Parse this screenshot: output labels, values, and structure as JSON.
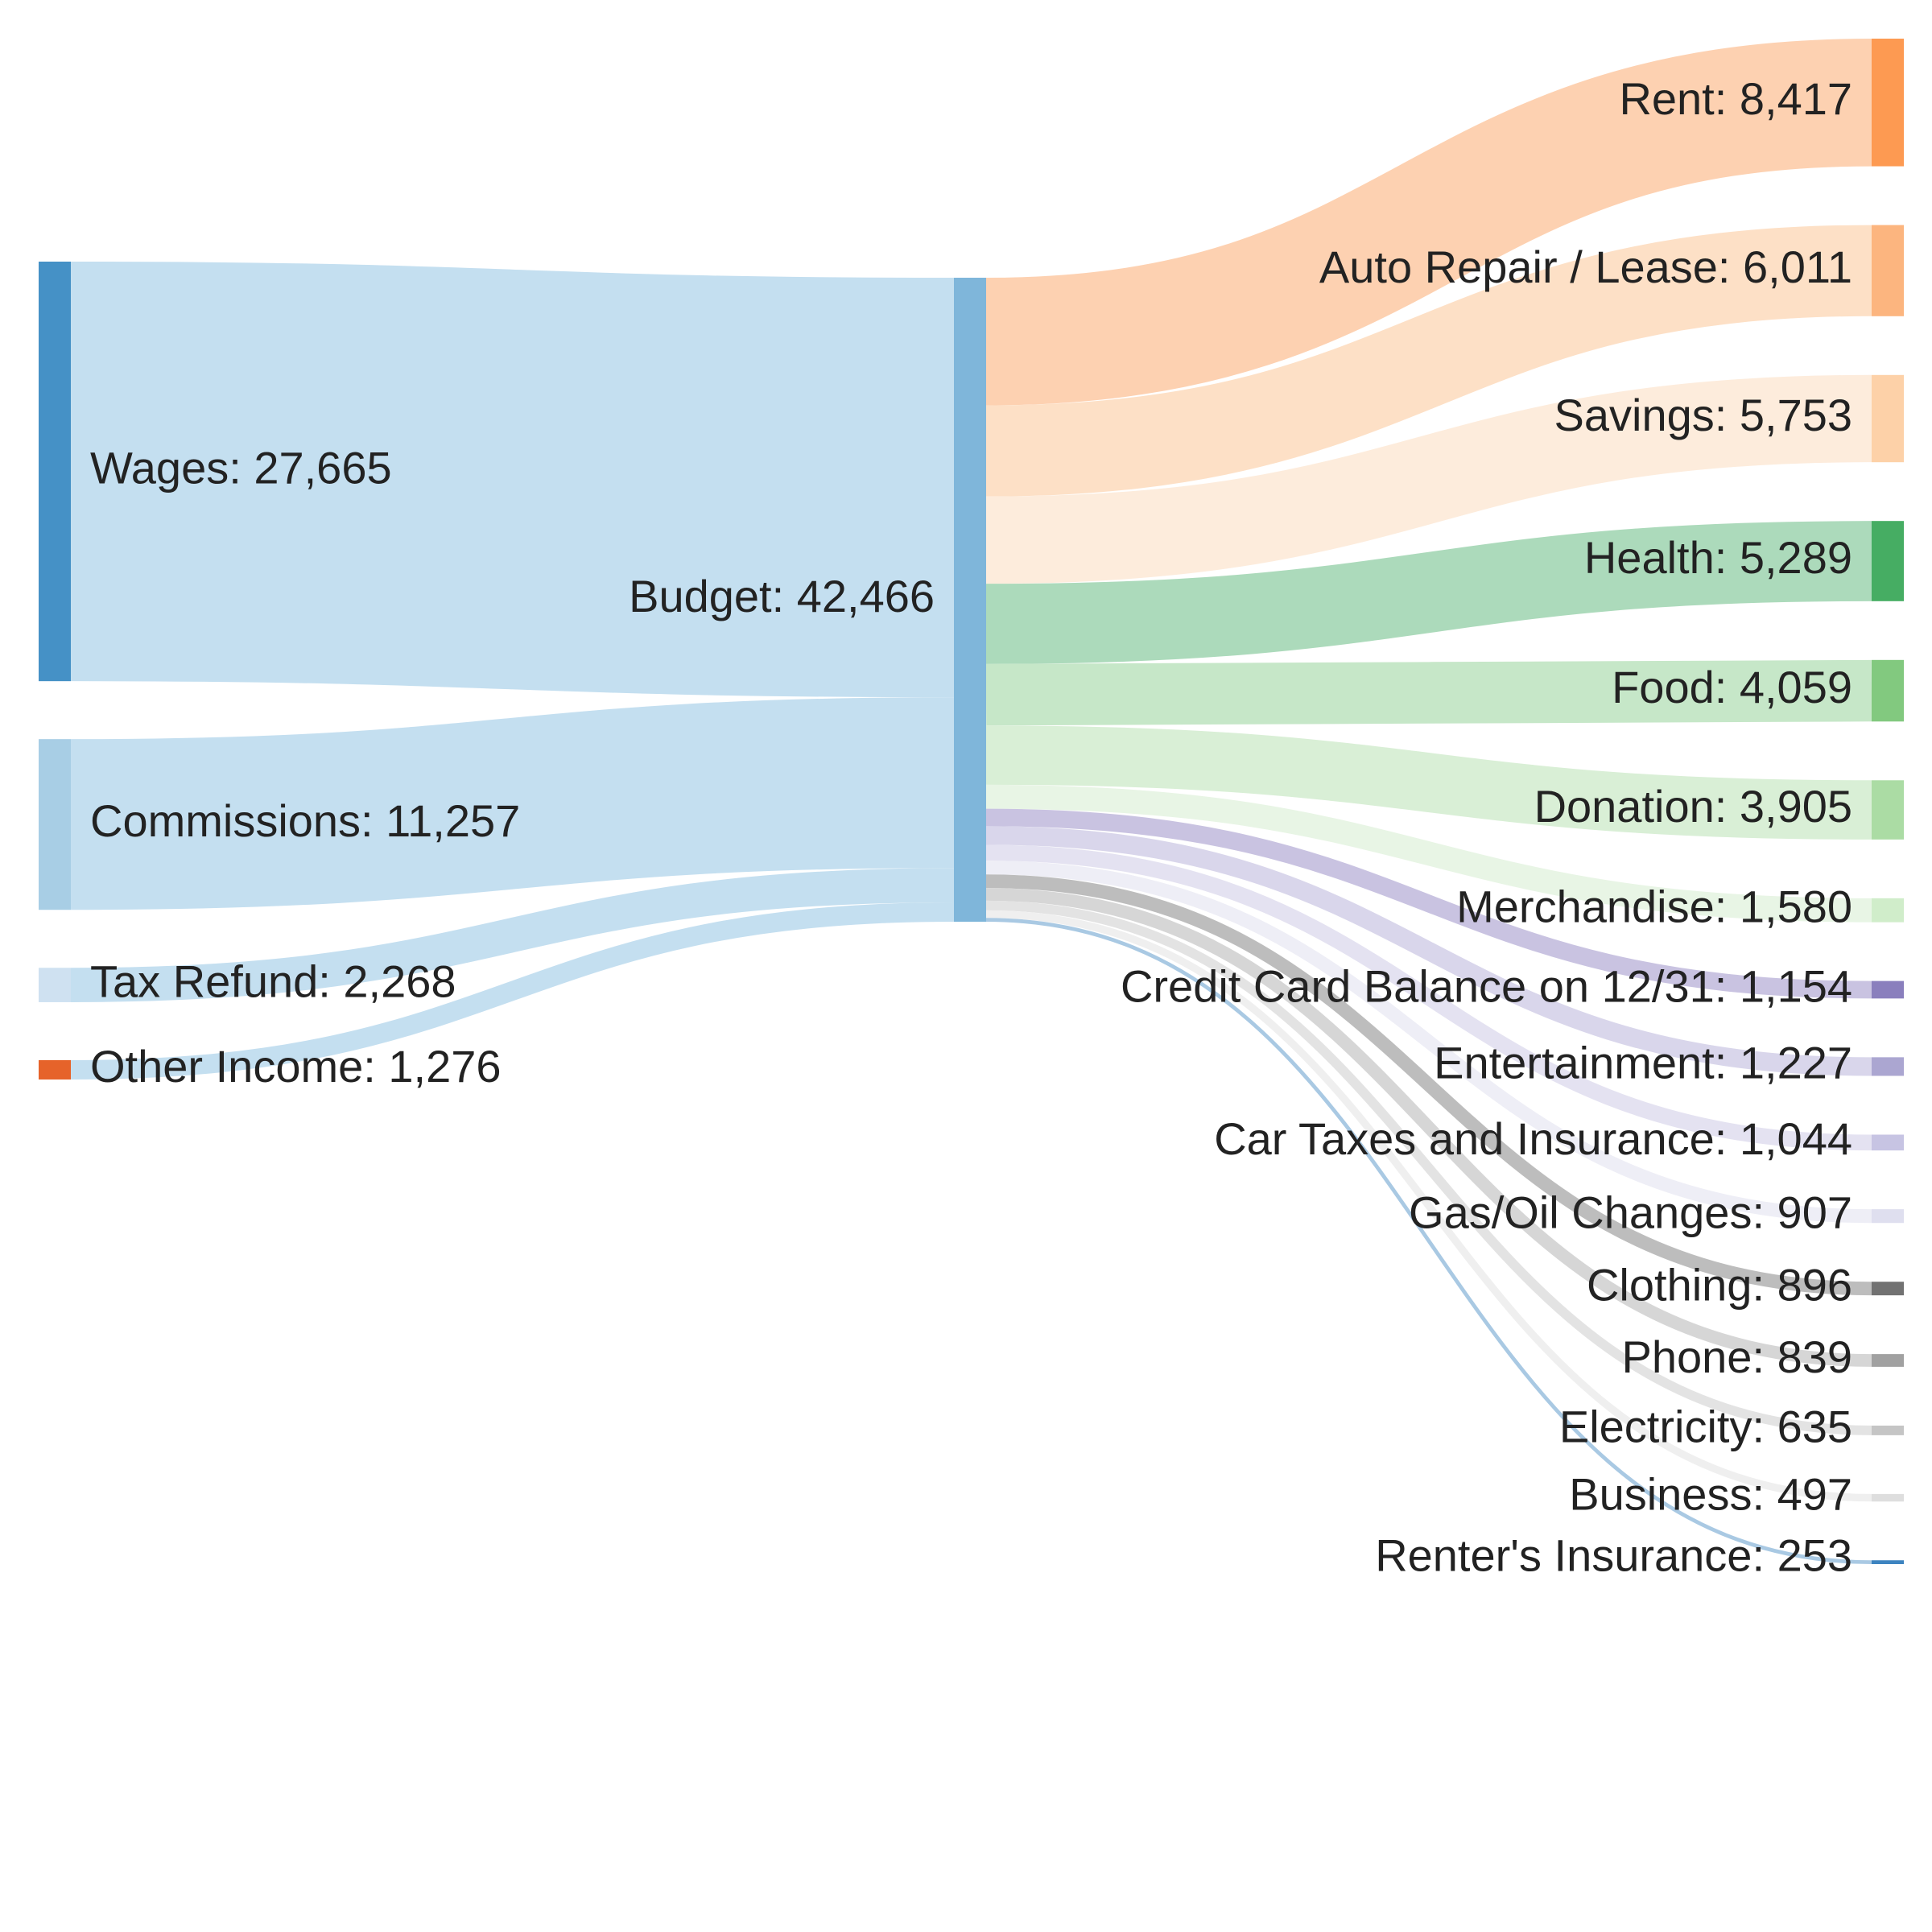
{
  "chart_data": {
    "type": "sankey",
    "nodes": [
      {
        "id": "wages",
        "name": "Wages",
        "value": 27665,
        "label": "Wages: 27,665",
        "column": 0,
        "color": "#4591c6",
        "link_color": "#c4dff0"
      },
      {
        "id": "commissions",
        "name": "Commissions",
        "value": 11257,
        "label": "Commissions: 11,257",
        "column": 0,
        "color": "#a8cee5",
        "link_color": "#c4dff0"
      },
      {
        "id": "tax_refund",
        "name": "Tax Refund",
        "value": 2268,
        "label": "Tax Refund: 2,268",
        "column": 0,
        "color": "#cfe1f1",
        "link_color": "#c4dff0"
      },
      {
        "id": "other_income",
        "name": "Other Income",
        "value": 1276,
        "label": "Other Income: 1,276",
        "column": 0,
        "color": "#e6632a",
        "link_color": "#c4dff0"
      },
      {
        "id": "budget",
        "name": "Budget",
        "value": 42466,
        "label": "Budget: 42,466",
        "column": 1,
        "color": "#7fb6da"
      },
      {
        "id": "rent",
        "name": "Rent",
        "value": 8417,
        "label": "Rent: 8,417",
        "column": 2,
        "color": "#fd9a52",
        "link_color": "#fdd1b1"
      },
      {
        "id": "auto",
        "name": "Auto Repair / Lease",
        "value": 6011,
        "label": "Auto Repair / Lease: 6,011",
        "column": 2,
        "color": "#fcb57f",
        "link_color": "#fde0c6"
      },
      {
        "id": "savings",
        "name": "Savings",
        "value": 5753,
        "label": "Savings: 5,753",
        "column": 2,
        "color": "#fdd1a8",
        "link_color": "#fdecdc"
      },
      {
        "id": "health",
        "name": "Health",
        "value": 5289,
        "label": "Health: 5,289",
        "column": 2,
        "color": "#46ad63",
        "link_color": "#acdabb"
      },
      {
        "id": "food",
        "name": "Food",
        "value": 4059,
        "label": "Food: 4,059",
        "column": 2,
        "color": "#82c97f",
        "link_color": "#c6e7c8"
      },
      {
        "id": "donation",
        "name": "Donation",
        "value": 3905,
        "label": "Donation: 3,905",
        "column": 2,
        "color": "#abdca4",
        "link_color": "#d9efd6"
      },
      {
        "id": "merch",
        "name": "Merchandise",
        "value": 1580,
        "label": "Merchandise: 1,580",
        "column": 2,
        "color": "#d0edca",
        "link_color": "#e8f5e5"
      },
      {
        "id": "cc",
        "name": "Credit Card Balance on 12/31",
        "value": 1154,
        "label": "Credit Card Balance on 12/31: 1,154",
        "column": 2,
        "color": "#8a7fbd",
        "link_color": "#c9c3e1"
      },
      {
        "id": "entertainment",
        "name": "Entertainment",
        "value": 1227,
        "label": "Entertainment: 1,227",
        "column": 2,
        "color": "#aba6d1",
        "link_color": "#d9d6eb"
      },
      {
        "id": "car_tax",
        "name": "Car Taxes and Insurance",
        "value": 1044,
        "label": "Car Taxes and Insurance: 1,044",
        "column": 2,
        "color": "#c7c4e3",
        "link_color": "#e4e2f1"
      },
      {
        "id": "gas",
        "name": "Gas/Oil Changes",
        "value": 907,
        "label": "Gas/Oil Changes: 907",
        "column": 2,
        "color": "#dfdfef",
        "link_color": "#eeeef6"
      },
      {
        "id": "clothing",
        "name": "Clothing",
        "value": 896,
        "label": "Clothing: 896",
        "column": 2,
        "color": "#727272",
        "link_color": "#bdbdbd"
      },
      {
        "id": "phone",
        "name": "Phone",
        "value": 839,
        "label": "Phone: 839",
        "column": 2,
        "color": "#a1a1a1",
        "link_color": "#d6d6d6"
      },
      {
        "id": "electricity",
        "name": "Electricity",
        "value": 635,
        "label": "Electricity: 635",
        "column": 2,
        "color": "#c5c5c5",
        "link_color": "#e3e3e3"
      },
      {
        "id": "business",
        "name": "Business",
        "value": 497,
        "label": "Business: 497",
        "column": 2,
        "color": "#dedede",
        "link_color": "#efefef"
      },
      {
        "id": "renters",
        "name": "Renter's Insurance",
        "value": 253,
        "label": "Renter's Insurance: 253",
        "column": 2,
        "color": "#3d84c0",
        "link_color": "#a9c9e3"
      }
    ],
    "links": [
      {
        "source": "wages",
        "target": "budget",
        "value": 27665
      },
      {
        "source": "commissions",
        "target": "budget",
        "value": 11257
      },
      {
        "source": "tax_refund",
        "target": "budget",
        "value": 2268
      },
      {
        "source": "other_income",
        "target": "budget",
        "value": 1276
      },
      {
        "source": "budget",
        "target": "rent",
        "value": 8417
      },
      {
        "source": "budget",
        "target": "auto",
        "value": 6011
      },
      {
        "source": "budget",
        "target": "savings",
        "value": 5753
      },
      {
        "source": "budget",
        "target": "health",
        "value": 5289
      },
      {
        "source": "budget",
        "target": "food",
        "value": 4059
      },
      {
        "source": "budget",
        "target": "donation",
        "value": 3905
      },
      {
        "source": "budget",
        "target": "merch",
        "value": 1580
      },
      {
        "source": "budget",
        "target": "cc",
        "value": 1154
      },
      {
        "source": "budget",
        "target": "entertainment",
        "value": 1227
      },
      {
        "source": "budget",
        "target": "car_tax",
        "value": 1044
      },
      {
        "source": "budget",
        "target": "gas",
        "value": 907
      },
      {
        "source": "budget",
        "target": "clothing",
        "value": 896
      },
      {
        "source": "budget",
        "target": "phone",
        "value": 839
      },
      {
        "source": "budget",
        "target": "electricity",
        "value": 635
      },
      {
        "source": "budget",
        "target": "business",
        "value": 497
      },
      {
        "source": "budget",
        "target": "renters",
        "value": 253
      }
    ]
  }
}
